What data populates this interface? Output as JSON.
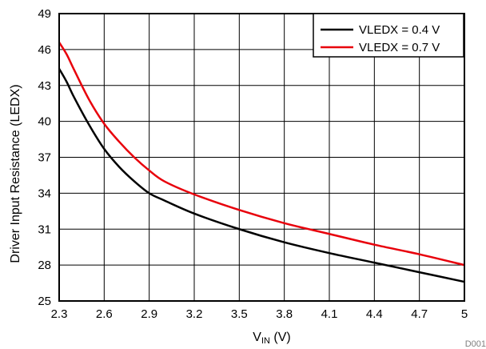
{
  "chart_data": {
    "type": "line",
    "xlabel_main": "V",
    "xlabel_sub": "IN",
    "xlabel_unit": " (V)",
    "ylabel": "Driver Input Resistance (LEDX)",
    "xlim": [
      2.3,
      5
    ],
    "ylim": [
      25,
      49
    ],
    "x_ticks": [
      "2.3",
      "2.6",
      "2.9",
      "3.2",
      "3.5",
      "3.8",
      "4.1",
      "4.4",
      "4.7",
      "5"
    ],
    "y_ticks": [
      "25",
      "28",
      "31",
      "34",
      "37",
      "40",
      "43",
      "46",
      "49"
    ],
    "grid": true,
    "legend_position": "top-right",
    "series": [
      {
        "name": "VLEDX = 0.4 V",
        "color": "#000000",
        "x": [
          2.3,
          2.35,
          2.4,
          2.5,
          2.6,
          2.7,
          2.8,
          2.9,
          3.0,
          3.2,
          3.5,
          3.8,
          4.1,
          4.4,
          4.7,
          5.0
        ],
        "y": [
          44.4,
          43.3,
          42.0,
          39.7,
          37.7,
          36.2,
          35.0,
          34.0,
          33.4,
          32.3,
          31.0,
          29.9,
          29.0,
          28.2,
          27.4,
          26.6
        ]
      },
      {
        "name": "VLEDX = 0.7 V",
        "color": "#e8000b",
        "x": [
          2.3,
          2.35,
          2.4,
          2.5,
          2.6,
          2.7,
          2.8,
          2.9,
          3.0,
          3.2,
          3.5,
          3.8,
          4.1,
          4.4,
          4.7,
          5.0
        ],
        "y": [
          46.6,
          45.6,
          44.3,
          41.8,
          39.8,
          38.3,
          37.0,
          35.9,
          35.0,
          33.9,
          32.6,
          31.5,
          30.6,
          29.7,
          28.9,
          28.0
        ]
      }
    ]
  },
  "figure_code": "D001"
}
